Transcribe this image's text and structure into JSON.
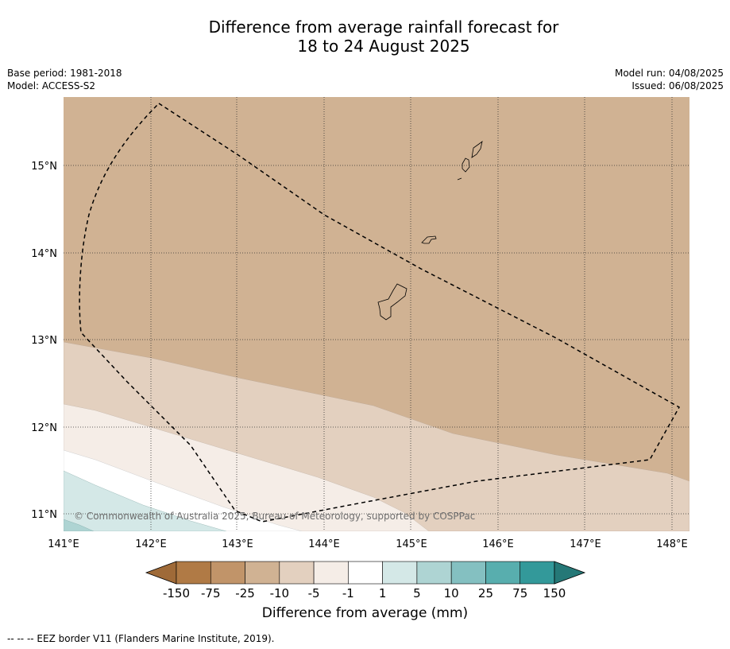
{
  "title_line1": "Difference from average rainfall forecast for",
  "title_line2": "18 to 24 August 2025",
  "base_period": "Base period: 1981-2018",
  "model": "Model: ACCESS-S2",
  "model_run": "Model run: 04/08/2025",
  "issued": "Issued: 06/08/2025",
  "map": {
    "x_axis": {
      "range": [
        141.0,
        148.2
      ],
      "ticks": [
        141,
        142,
        143,
        144,
        145,
        146,
        147,
        148
      ],
      "tick_labels": [
        "141°E",
        "142°E",
        "143°E",
        "144°E",
        "145°E",
        "146°E",
        "147°E",
        "148°E"
      ]
    },
    "y_axis": {
      "range": [
        10.8,
        15.8
      ],
      "ticks": [
        11,
        12,
        13,
        14,
        15
      ],
      "tick_labels": [
        "11°N",
        "12°N",
        "13°N",
        "14°N",
        "15°N"
      ]
    },
    "grid": "dotted",
    "credit": "© Commonwealth of Australia 2025, Bureau of Meteorology, supported by COSPPac"
  },
  "colorbar": {
    "tick_labels": [
      "-150",
      "-75",
      "-25",
      "-10",
      "-5",
      "-1",
      "1",
      "5",
      "10",
      "25",
      "75",
      "150"
    ],
    "colors": [
      "#9f6a38",
      "#b07a45",
      "#c19469",
      "#d0b293",
      "#e3d0bf",
      "#f5ede7",
      "#ffffff",
      "#d4e8e7",
      "#aed4d3",
      "#84c0c1",
      "#58aeae",
      "#33999a",
      "#257877"
    ],
    "label": "Difference from average (mm)"
  },
  "footer": "--  --  -- EEZ border V11 (Flanders Marine Institute, 2019)."
}
